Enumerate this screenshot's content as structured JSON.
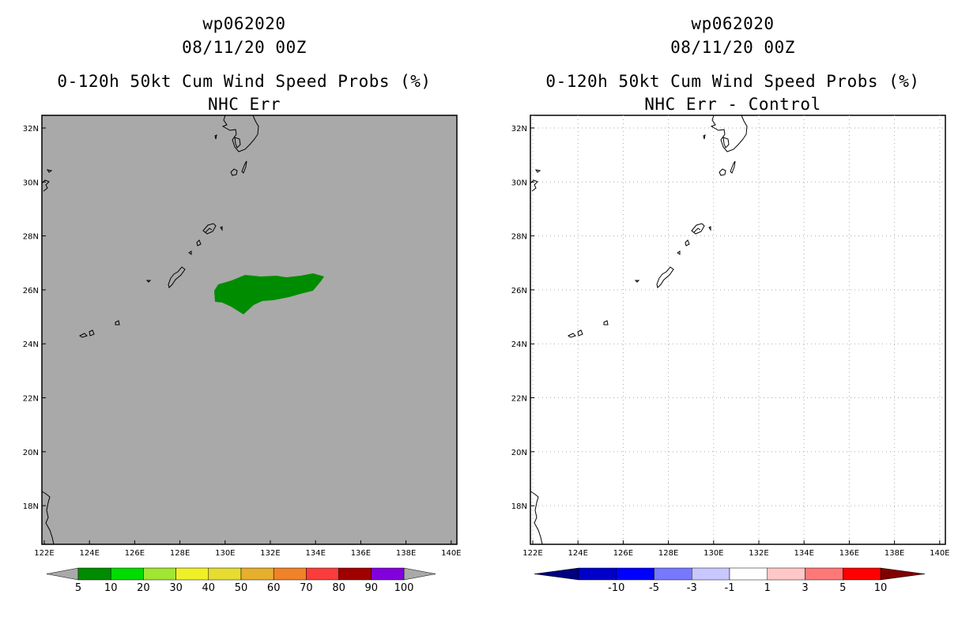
{
  "left_panel": {
    "storm_id": "wp062020",
    "datetime": "08/11/20 00Z",
    "product": "0-120h 50kt Cum Wind Speed Probs (%)",
    "subtitle": "NHC Err",
    "background_color": "#a9a9a9",
    "colorbar": {
      "labels": [
        "5",
        "10",
        "20",
        "30",
        "40",
        "50",
        "60",
        "70",
        "80",
        "90",
        "100"
      ],
      "colors": [
        "#008c00",
        "#00dc00",
        "#a0e632",
        "#f0f028",
        "#e6dc32",
        "#e6af2d",
        "#f08228",
        "#fa3c3c",
        "#a00000",
        "#8200dc"
      ],
      "end_color": "#a9a9a9"
    }
  },
  "right_panel": {
    "storm_id": "wp062020",
    "datetime": "08/11/20 00Z",
    "product": "0-120h 50kt Cum Wind Speed Probs (%)",
    "subtitle": "NHC Err - Control",
    "background_color": "#ffffff",
    "colorbar": {
      "labels": [
        "-10",
        "-5",
        "-3",
        "-1",
        "1",
        "3",
        "5",
        "10"
      ],
      "colors": [
        "#0000c8",
        "#0000ff",
        "#7878ff",
        "#c8c8ff",
        "#ffffff",
        "#ffc8c8",
        "#ff7878",
        "#ff0000"
      ],
      "end_low": "#000080",
      "end_high": "#800000"
    }
  },
  "axes": {
    "lon_labels": [
      "122E",
      "124E",
      "126E",
      "128E",
      "130E",
      "132E",
      "134E",
      "136E",
      "138E",
      "140E"
    ],
    "lat_labels": [
      "32N",
      "30N",
      "28N",
      "26N",
      "24N",
      "22N",
      "20N",
      "18N"
    ]
  },
  "probability_region": {
    "lon_min": 129.5,
    "lon_max": 134.6,
    "lat_min": 25.1,
    "lat_max": 26.7,
    "category": "5-10",
    "color": "#008c00"
  }
}
